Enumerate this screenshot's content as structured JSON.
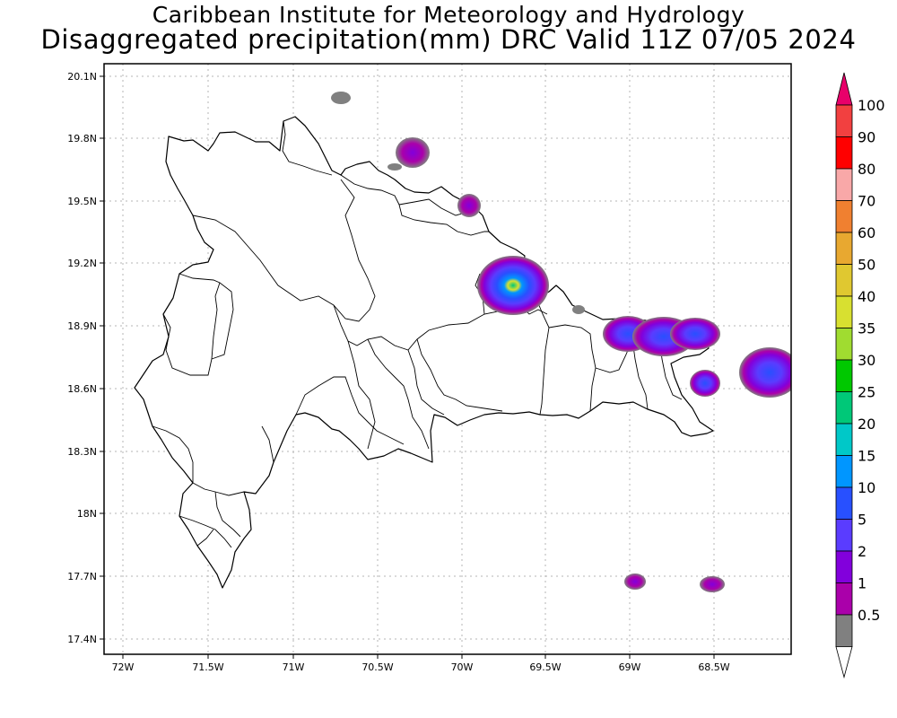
{
  "title": {
    "line1": "Caribbean Institute for Meteorology and Hydrology",
    "line2": "Disaggregated precipitation(mm) DRC Valid 11Z 07/05 2024"
  },
  "axes": {
    "lon_ticks": [
      "72W",
      "71.5W",
      "71W",
      "70.5W",
      "70W",
      "69.5W",
      "69W",
      "68.5W"
    ],
    "lat_ticks": [
      "20.1N",
      "19.8N",
      "19.5N",
      "19.2N",
      "18.9N",
      "18.6N",
      "18.3N",
      "18N",
      "17.7N",
      "17.4N"
    ]
  },
  "colorbar": {
    "labels": [
      "100",
      "90",
      "80",
      "70",
      "60",
      "50",
      "40",
      "35",
      "30",
      "25",
      "20",
      "15",
      "10",
      "5",
      "2",
      "1",
      "0.5"
    ],
    "colors": [
      "#e8006a",
      "#f24040",
      "#ff0000",
      "#f9a8a8",
      "#f08030",
      "#e8a830",
      "#e0c830",
      "#d8e030",
      "#a0dc30",
      "#00c800",
      "#00c878",
      "#00c8c8",
      "#0096ff",
      "#2850ff",
      "#5a3cff",
      "#8200dc",
      "#aa00aa",
      "#808080",
      "#ffffff"
    ]
  },
  "map": {
    "land_fill": "#ffffff",
    "border_color": "#000000",
    "grid_color": "#b4b4b4"
  }
}
